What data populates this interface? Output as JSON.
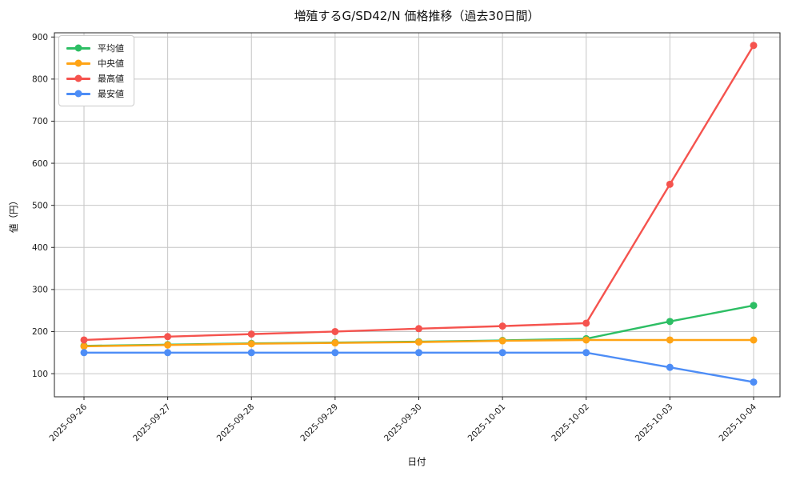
{
  "chart_data": {
    "type": "line",
    "title": "増殖するG/SD42/N 価格推移（過去30日間）",
    "xlabel": "日付",
    "ylabel": "値（円）",
    "categories": [
      "2025-09-26",
      "2025-09-27",
      "2025-09-28",
      "2025-09-29",
      "2025-09-30",
      "2025-10-01",
      "2025-10-02",
      "2025-10-03",
      "2025-10-04"
    ],
    "series": [
      {
        "name": "平均値",
        "color": "#2DBE64",
        "values": [
          166,
          169,
          172,
          174,
          176,
          179,
          183,
          224,
          262
        ]
      },
      {
        "name": "中央値",
        "color": "#FFA415",
        "values": [
          165,
          168,
          171,
          173,
          175,
          178,
          180,
          180,
          180
        ]
      },
      {
        "name": "最高値",
        "color": "#F5534E",
        "values": [
          180,
          188,
          194,
          200,
          207,
          213,
          220,
          550,
          880
        ]
      },
      {
        "name": "最安値",
        "color": "#4D8DF6",
        "values": [
          150,
          150,
          150,
          150,
          150,
          150,
          150,
          115,
          80
        ]
      }
    ],
    "yticks": [
      100,
      200,
      300,
      400,
      500,
      600,
      700,
      800,
      900
    ],
    "ylim": [
      45,
      910
    ],
    "grid": true,
    "legend_position": "upper left"
  },
  "style": {
    "grid_color": "#c6c6c6",
    "spine_color": "#262626",
    "text_color": "#1a1a1a",
    "background": "#ffffff"
  }
}
